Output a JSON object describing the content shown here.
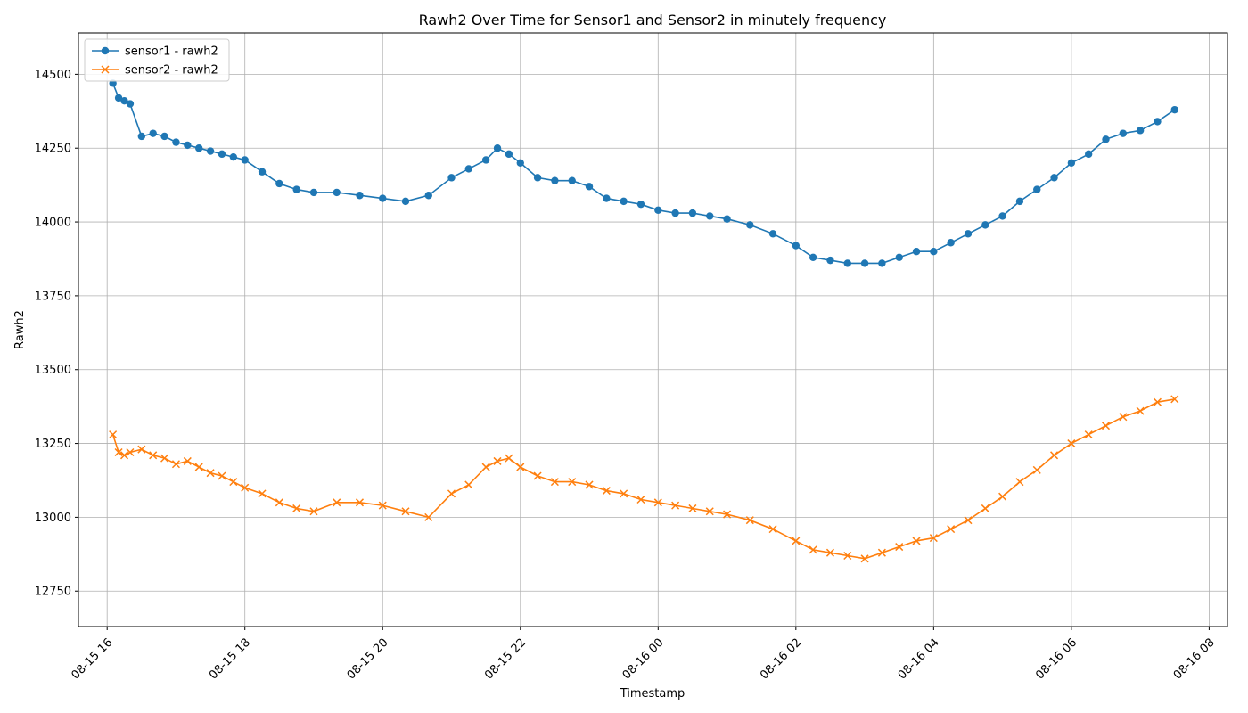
{
  "chart_data": {
    "type": "line",
    "title": "Rawh2 Over Time for Sensor1 and Sensor2 in minutely frequency",
    "xlabel": "Timestamp",
    "ylabel": "Rawh2",
    "grid": true,
    "legend_position": "top-left",
    "x_scale": "time",
    "xlim": [
      "2023-08-15 15:35",
      "2023-08-16 08:16"
    ],
    "ylim": [
      12630,
      14640
    ],
    "x_ticks": [
      {
        "value": "2023-08-15 16:00",
        "label": "08-15 16"
      },
      {
        "value": "2023-08-15 18:00",
        "label": "08-15 18"
      },
      {
        "value": "2023-08-15 20:00",
        "label": "08-15 20"
      },
      {
        "value": "2023-08-15 22:00",
        "label": "08-15 22"
      },
      {
        "value": "2023-08-16 00:00",
        "label": "08-16 00"
      },
      {
        "value": "2023-08-16 02:00",
        "label": "08-16 02"
      },
      {
        "value": "2023-08-16 04:00",
        "label": "08-16 04"
      },
      {
        "value": "2023-08-16 06:00",
        "label": "08-16 06"
      },
      {
        "value": "2023-08-16 08:00",
        "label": "08-16 08"
      }
    ],
    "y_ticks": [
      12750,
      13000,
      13250,
      13500,
      13750,
      14000,
      14250,
      14500
    ],
    "series": [
      {
        "name": "sensor1 - rawh2",
        "color": "#1f77b4",
        "marker": "circle",
        "x": [
          "2023-08-15 16:05",
          "2023-08-15 16:10",
          "2023-08-15 16:15",
          "2023-08-15 16:20",
          "2023-08-15 16:30",
          "2023-08-15 16:40",
          "2023-08-15 16:50",
          "2023-08-15 17:00",
          "2023-08-15 17:10",
          "2023-08-15 17:20",
          "2023-08-15 17:30",
          "2023-08-15 17:40",
          "2023-08-15 17:50",
          "2023-08-15 18:00",
          "2023-08-15 18:15",
          "2023-08-15 18:30",
          "2023-08-15 18:45",
          "2023-08-15 19:00",
          "2023-08-15 19:20",
          "2023-08-15 19:40",
          "2023-08-15 20:00",
          "2023-08-15 20:20",
          "2023-08-15 20:40",
          "2023-08-15 21:00",
          "2023-08-15 21:15",
          "2023-08-15 21:30",
          "2023-08-15 21:40",
          "2023-08-15 21:50",
          "2023-08-15 22:00",
          "2023-08-15 22:15",
          "2023-08-15 22:30",
          "2023-08-15 22:45",
          "2023-08-15 23:00",
          "2023-08-15 23:15",
          "2023-08-15 23:30",
          "2023-08-15 23:45",
          "2023-08-16 00:00",
          "2023-08-16 00:15",
          "2023-08-16 00:30",
          "2023-08-16 00:45",
          "2023-08-16 01:00",
          "2023-08-16 01:20",
          "2023-08-16 01:40",
          "2023-08-16 02:00",
          "2023-08-16 02:15",
          "2023-08-16 02:30",
          "2023-08-16 02:45",
          "2023-08-16 03:00",
          "2023-08-16 03:15",
          "2023-08-16 03:30",
          "2023-08-16 03:45",
          "2023-08-16 04:00",
          "2023-08-16 04:15",
          "2023-08-16 04:30",
          "2023-08-16 04:45",
          "2023-08-16 05:00",
          "2023-08-16 05:15",
          "2023-08-16 05:30",
          "2023-08-16 05:45",
          "2023-08-16 06:00",
          "2023-08-16 06:15",
          "2023-08-16 06:30",
          "2023-08-16 06:45",
          "2023-08-16 07:00",
          "2023-08-16 07:15",
          "2023-08-16 07:30"
        ],
        "values": [
          14470,
          14420,
          14410,
          14400,
          14290,
          14300,
          14290,
          14270,
          14260,
          14250,
          14240,
          14230,
          14220,
          14210,
          14170,
          14130,
          14110,
          14100,
          14100,
          14090,
          14080,
          14070,
          14090,
          14150,
          14180,
          14210,
          14250,
          14230,
          14200,
          14150,
          14140,
          14140,
          14120,
          14080,
          14070,
          14060,
          14040,
          14030,
          14030,
          14020,
          14010,
          13990,
          13960,
          13920,
          13880,
          13870,
          13860,
          13860,
          13860,
          13880,
          13900,
          13900,
          13930,
          13960,
          13990,
          14020,
          14070,
          14110,
          14150,
          14200,
          14230,
          14280,
          14300,
          14310,
          14340,
          14380
        ]
      },
      {
        "name": "sensor2 - rawh2",
        "color": "#ff7f0e",
        "marker": "x",
        "x": [
          "2023-08-15 16:05",
          "2023-08-15 16:10",
          "2023-08-15 16:15",
          "2023-08-15 16:20",
          "2023-08-15 16:30",
          "2023-08-15 16:40",
          "2023-08-15 16:50",
          "2023-08-15 17:00",
          "2023-08-15 17:10",
          "2023-08-15 17:20",
          "2023-08-15 17:30",
          "2023-08-15 17:40",
          "2023-08-15 17:50",
          "2023-08-15 18:00",
          "2023-08-15 18:15",
          "2023-08-15 18:30",
          "2023-08-15 18:45",
          "2023-08-15 19:00",
          "2023-08-15 19:20",
          "2023-08-15 19:40",
          "2023-08-15 20:00",
          "2023-08-15 20:20",
          "2023-08-15 20:40",
          "2023-08-15 21:00",
          "2023-08-15 21:15",
          "2023-08-15 21:30",
          "2023-08-15 21:40",
          "2023-08-15 21:50",
          "2023-08-15 22:00",
          "2023-08-15 22:15",
          "2023-08-15 22:30",
          "2023-08-15 22:45",
          "2023-08-15 23:00",
          "2023-08-15 23:15",
          "2023-08-15 23:30",
          "2023-08-15 23:45",
          "2023-08-16 00:00",
          "2023-08-16 00:15",
          "2023-08-16 00:30",
          "2023-08-16 00:45",
          "2023-08-16 01:00",
          "2023-08-16 01:20",
          "2023-08-16 01:40",
          "2023-08-16 02:00",
          "2023-08-16 02:15",
          "2023-08-16 02:30",
          "2023-08-16 02:45",
          "2023-08-16 03:00",
          "2023-08-16 03:15",
          "2023-08-16 03:30",
          "2023-08-16 03:45",
          "2023-08-16 04:00",
          "2023-08-16 04:15",
          "2023-08-16 04:30",
          "2023-08-16 04:45",
          "2023-08-16 05:00",
          "2023-08-16 05:15",
          "2023-08-16 05:30",
          "2023-08-16 05:45",
          "2023-08-16 06:00",
          "2023-08-16 06:15",
          "2023-08-16 06:30",
          "2023-08-16 06:45",
          "2023-08-16 07:00",
          "2023-08-16 07:15",
          "2023-08-16 07:30"
        ],
        "values": [
          13280,
          13220,
          13210,
          13220,
          13230,
          13210,
          13200,
          13180,
          13190,
          13170,
          13150,
          13140,
          13120,
          13100,
          13080,
          13050,
          13030,
          13020,
          13050,
          13050,
          13040,
          13020,
          13000,
          13080,
          13110,
          13170,
          13190,
          13200,
          13170,
          13140,
          13120,
          13120,
          13110,
          13090,
          13080,
          13060,
          13050,
          13040,
          13030,
          13020,
          13010,
          12990,
          12960,
          12920,
          12890,
          12880,
          12870,
          12860,
          12880,
          12900,
          12920,
          12930,
          12960,
          12990,
          13030,
          13070,
          13120,
          13160,
          13210,
          13250,
          13280,
          13310,
          13340,
          13360,
          13390,
          13400
        ]
      }
    ]
  }
}
